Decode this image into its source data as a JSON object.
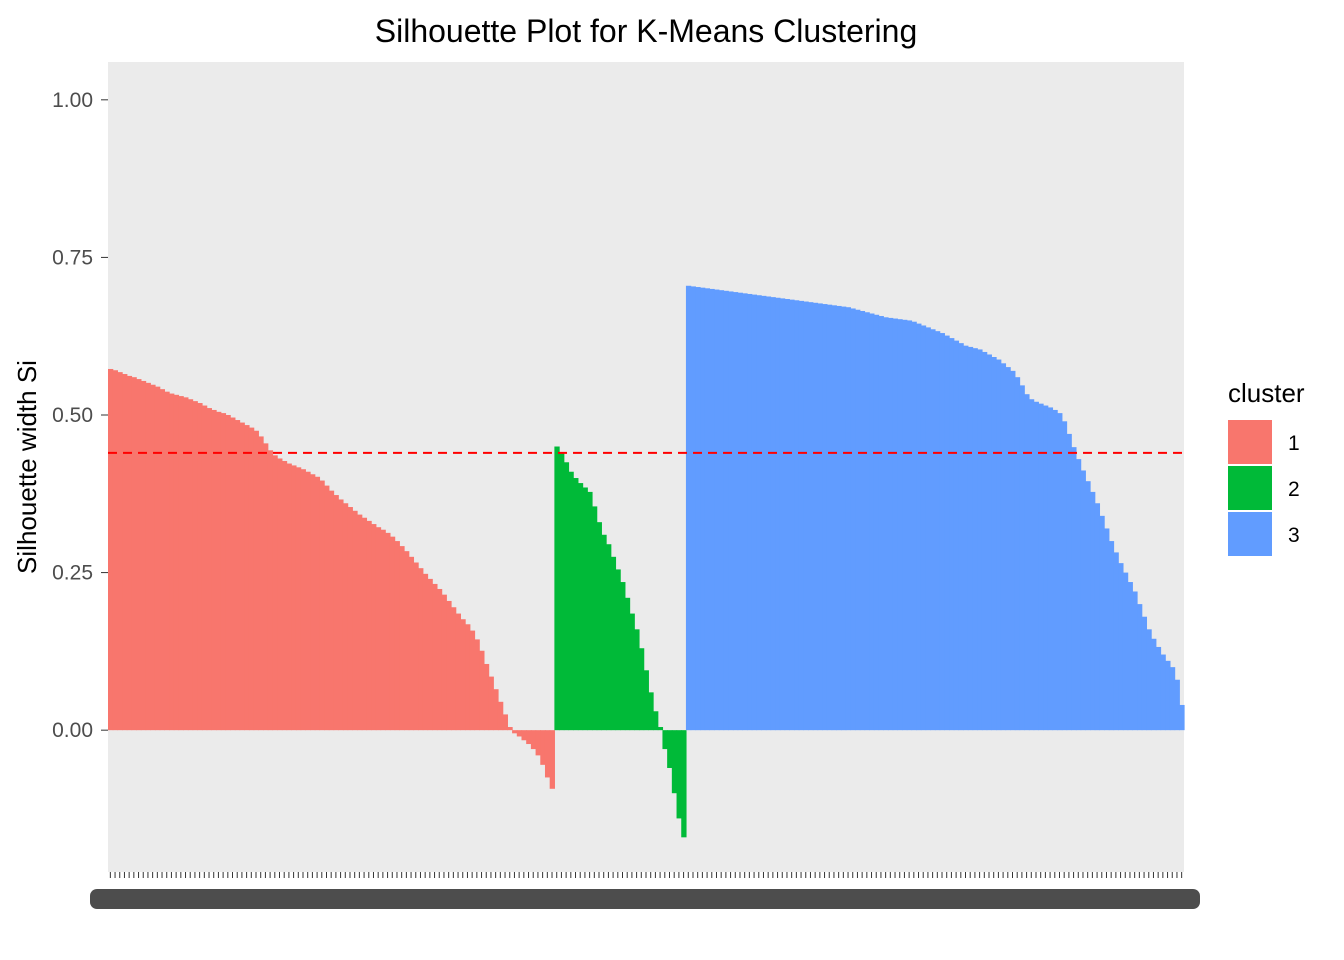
{
  "chart_data": {
    "type": "bar",
    "title": "Silhouette Plot for K-Means Clustering",
    "xlabel": "",
    "ylabel": "Silhouette width Si",
    "ylim": [
      -0.225,
      1.06
    ],
    "yticks": [
      "0.00",
      "0.25",
      "0.50",
      "0.75",
      "1.00"
    ],
    "ytick_values": [
      0.0,
      0.25,
      0.5,
      0.75,
      1.0
    ],
    "average_line": {
      "value": 0.44,
      "color": "#FF0000",
      "style": "dashed"
    },
    "legend": {
      "title": "cluster",
      "placement": "right",
      "entries": [
        "1",
        "2",
        "3"
      ]
    },
    "grid": false,
    "panel_background": "#EBEBEB",
    "colors": {
      "1": "#F8766D",
      "2": "#00BA38",
      "3": "#619CFF"
    },
    "series": [
      {
        "name": "1",
        "values": [
          0.573,
          0.571,
          0.568,
          0.565,
          0.562,
          0.56,
          0.557,
          0.554,
          0.551,
          0.548,
          0.545,
          0.541,
          0.537,
          0.534,
          0.532,
          0.53,
          0.528,
          0.525,
          0.522,
          0.519,
          0.515,
          0.511,
          0.508,
          0.505,
          0.503,
          0.5,
          0.496,
          0.492,
          0.488,
          0.484,
          0.48,
          0.475,
          0.466,
          0.455,
          0.444,
          0.436,
          0.431,
          0.427,
          0.423,
          0.42,
          0.417,
          0.414,
          0.41,
          0.406,
          0.402,
          0.396,
          0.388,
          0.38,
          0.373,
          0.366,
          0.36,
          0.354,
          0.348,
          0.342,
          0.337,
          0.332,
          0.327,
          0.322,
          0.318,
          0.313,
          0.307,
          0.3,
          0.292,
          0.284,
          0.275,
          0.266,
          0.257,
          0.248,
          0.24,
          0.232,
          0.224,
          0.215,
          0.205,
          0.195,
          0.185,
          0.176,
          0.168,
          0.158,
          0.144,
          0.126,
          0.105,
          0.085,
          0.065,
          0.045,
          0.025,
          0.005,
          -0.005,
          -0.01,
          -0.016,
          -0.022,
          -0.03,
          -0.04,
          -0.055,
          -0.075,
          -0.093
        ]
      },
      {
        "name": "2",
        "values": [
          0.45,
          0.44,
          0.425,
          0.41,
          0.4,
          0.392,
          0.385,
          0.378,
          0.355,
          0.33,
          0.31,
          0.295,
          0.275,
          0.255,
          0.235,
          0.21,
          0.185,
          0.16,
          0.13,
          0.095,
          0.06,
          0.03,
          0.005,
          -0.03,
          -0.06,
          -0.1,
          -0.14,
          -0.17
        ]
      },
      {
        "name": "3",
        "values": [
          0.705,
          0.704,
          0.703,
          0.702,
          0.701,
          0.7,
          0.699,
          0.698,
          0.697,
          0.696,
          0.695,
          0.694,
          0.693,
          0.692,
          0.691,
          0.69,
          0.689,
          0.688,
          0.687,
          0.686,
          0.685,
          0.684,
          0.683,
          0.682,
          0.681,
          0.68,
          0.679,
          0.678,
          0.677,
          0.676,
          0.675,
          0.674,
          0.673,
          0.672,
          0.671,
          0.669,
          0.667,
          0.665,
          0.663,
          0.661,
          0.659,
          0.657,
          0.655,
          0.654,
          0.653,
          0.652,
          0.651,
          0.65,
          0.648,
          0.645,
          0.642,
          0.639,
          0.636,
          0.633,
          0.63,
          0.626,
          0.622,
          0.618,
          0.614,
          0.61,
          0.608,
          0.606,
          0.604,
          0.6,
          0.596,
          0.592,
          0.588,
          0.582,
          0.576,
          0.57,
          0.56,
          0.547,
          0.533,
          0.525,
          0.521,
          0.518,
          0.515,
          0.512,
          0.508,
          0.503,
          0.49,
          0.47,
          0.449,
          0.43,
          0.412,
          0.395,
          0.378,
          0.36,
          0.34,
          0.32,
          0.3,
          0.282,
          0.265,
          0.25,
          0.235,
          0.22,
          0.2,
          0.18,
          0.16,
          0.145,
          0.132,
          0.12,
          0.11,
          0.1,
          0.08,
          0.04
        ]
      }
    ]
  }
}
